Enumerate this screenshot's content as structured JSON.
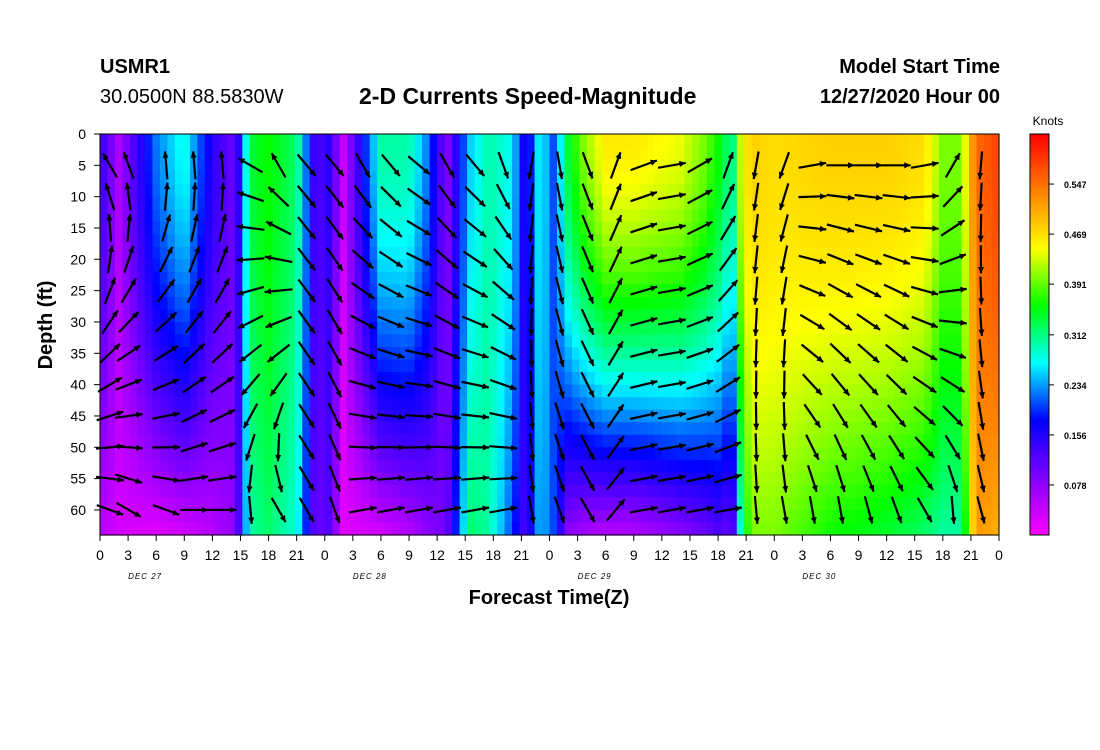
{
  "header": {
    "station": "USMR1",
    "coordinates": "30.0500N 88.5830W",
    "title": "2-D Currents Speed-Magnitude",
    "model_start_label": "Model Start Time",
    "model_start_value": "12/27/2020 Hour 00"
  },
  "chart_data": {
    "type": "heatmap",
    "title": "2-D Currents Speed-Magnitude",
    "xlabel": "Forecast Time(Z)",
    "ylabel": "Depth (ft)",
    "colorbar_label": "Knots",
    "x_ticks": [
      "0",
      "3",
      "6",
      "9",
      "12",
      "15",
      "18",
      "21",
      "0",
      "3",
      "6",
      "9",
      "12",
      "15",
      "18",
      "21",
      "0",
      "3",
      "6",
      "9",
      "12",
      "15",
      "18",
      "21",
      "0",
      "3",
      "6",
      "9",
      "12",
      "15",
      "18",
      "21",
      "0"
    ],
    "x_day_labels": [
      "DEC 27",
      "DEC 28",
      "DEC 29",
      "DEC 30"
    ],
    "x_range_hours": [
      0,
      96
    ],
    "y_ticks": [
      "0",
      "5",
      "10",
      "15",
      "20",
      "25",
      "30",
      "35",
      "40",
      "45",
      "50",
      "55",
      "60"
    ],
    "y_range_ft": [
      0,
      64
    ],
    "colorbar_ticks": [
      "0.078",
      "0.156",
      "0.234",
      "0.312",
      "0.391",
      "0.469",
      "0.547"
    ],
    "colorbar_range": [
      0,
      0.625
    ],
    "colors": {
      "scale": [
        "#ff00ff",
        "#8000ff",
        "#0000ff",
        "#00ffff",
        "#00ff00",
        "#ffff00",
        "#ff8000",
        "#ff0000"
      ],
      "vector": "#000000"
    },
    "speed_profile": {
      "hours": [
        0,
        2,
        6,
        9,
        12,
        14.5,
        16,
        18,
        21,
        23,
        24.5,
        26,
        30,
        33,
        35,
        37,
        39.5,
        41.5,
        44,
        45.5,
        47,
        48.5,
        50,
        51.5,
        54,
        57,
        62,
        64.5,
        66,
        67.5,
        68.5,
        69.5,
        72,
        78,
        84,
        88,
        90,
        92,
        93.5,
        96
      ],
      "surface_knots": [
        0.15,
        0.06,
        0.22,
        0.28,
        0.15,
        0.1,
        0.34,
        0.36,
        0.32,
        0.12,
        0.15,
        0.04,
        0.3,
        0.3,
        0.22,
        0.08,
        0.25,
        0.3,
        0.27,
        0.14,
        0.28,
        0.2,
        0.34,
        0.4,
        0.46,
        0.46,
        0.44,
        0.4,
        0.36,
        0.3,
        0.44,
        0.48,
        0.47,
        0.48,
        0.48,
        0.47,
        0.4,
        0.4,
        0.55,
        0.58
      ],
      "bottom_knots": [
        0.05,
        0.03,
        0.02,
        0.03,
        0.05,
        0.08,
        0.3,
        0.32,
        0.28,
        0.1,
        0.12,
        0.02,
        0.03,
        0.05,
        0.08,
        0.1,
        0.32,
        0.3,
        0.2,
        0.12,
        0.25,
        0.2,
        0.08,
        0.06,
        0.05,
        0.05,
        0.08,
        0.1,
        0.12,
        0.1,
        0.3,
        0.4,
        0.4,
        0.36,
        0.34,
        0.32,
        0.3,
        0.3,
        0.52,
        0.5
      ]
    },
    "vectors": {
      "hours": [
        0,
        2,
        6,
        9,
        12,
        15,
        18,
        21,
        24,
        27,
        30,
        33,
        36,
        39,
        42,
        45,
        48,
        51,
        54,
        57,
        60,
        63,
        66,
        69,
        72,
        75,
        78,
        81,
        84,
        87,
        90,
        93
      ],
      "depths_ft": [
        5,
        10,
        15,
        20,
        25,
        30,
        35,
        40,
        45,
        50,
        55,
        60
      ],
      "direction_deg": [
        330,
        340,
        355,
        355,
        355,
        300,
        330,
        140,
        140,
        150,
        140,
        130,
        150,
        140,
        160,
        190,
        170,
        160,
        20,
        70,
        80,
        60,
        20,
        190,
        200,
        80,
        90,
        90,
        90,
        80,
        30,
        185
      ],
      "direction_deep_deg": [
        110,
        120,
        110,
        90,
        90,
        175,
        150,
        150,
        160,
        80,
        80,
        80,
        80,
        80,
        80,
        170,
        160,
        150,
        40,
        80,
        80,
        80,
        80,
        175,
        170,
        170,
        170,
        165,
        160,
        150,
        175,
        165
      ]
    }
  }
}
